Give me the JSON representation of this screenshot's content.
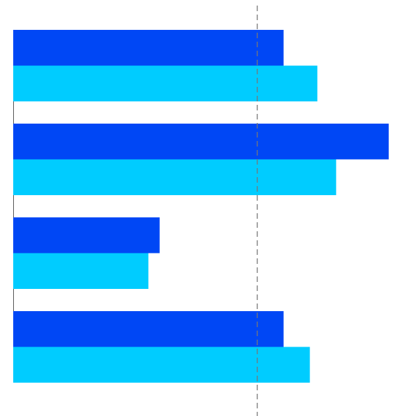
{
  "chart_data": {
    "type": "hbar",
    "categories": [
      null,
      null,
      null,
      null
    ],
    "series": [
      {
        "color": "#0047f5",
        "values": [
          72,
          100,
          39,
          72
        ]
      },
      {
        "color": "#00ccff",
        "values": [
          81,
          86,
          36,
          79
        ]
      }
    ],
    "xlim": [
      0,
      100
    ],
    "reference_line": 65
  }
}
